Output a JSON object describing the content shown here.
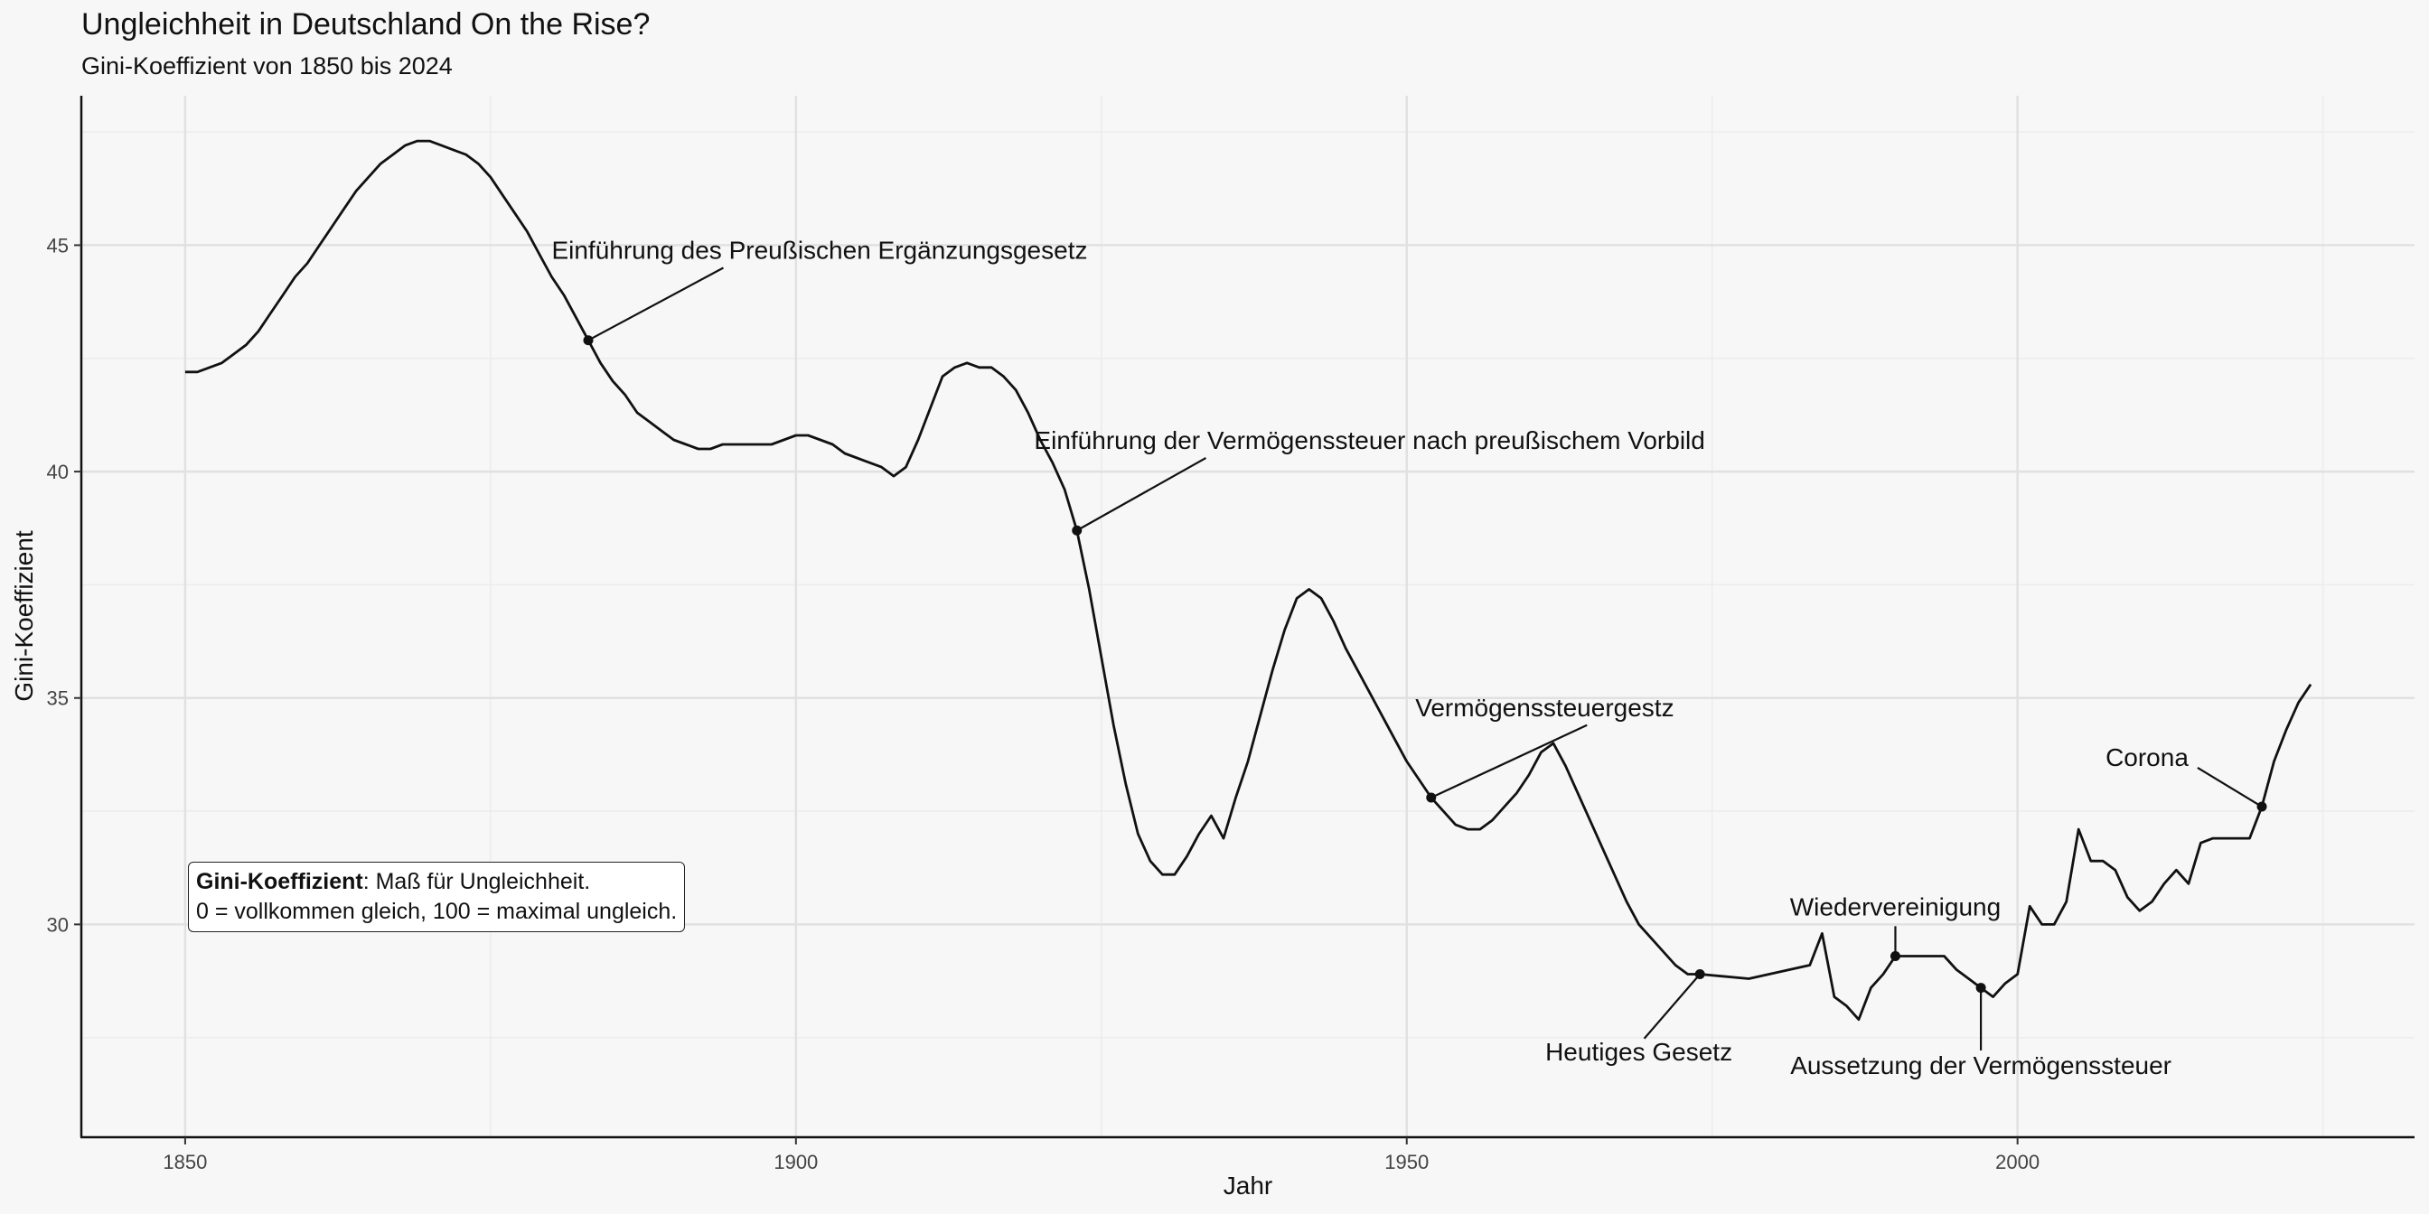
{
  "title": "Ungleichheit in Deutschland On the Rise?",
  "subtitle": "Gini-Koeffizient von 1850 bis 2024",
  "info_box": {
    "bold": "Gini-Koeffizient",
    "line1_rest": ": Maß für Ungleichheit.",
    "line2": "0 = vollkommen gleich, 100 = maximal ungleich."
  },
  "chart_data": {
    "type": "line",
    "title": "Ungleichheit in Deutschland On the Rise?",
    "subtitle": "Gini-Koeffizient von 1850 bis 2024",
    "xlabel": "Jahr",
    "ylabel": "Gini-Koeffizient",
    "xlim": [
      1841.5,
      2032.5
    ],
    "ylim": [
      25.3,
      48.3
    ],
    "x_ticks": [
      1850,
      1900,
      1950,
      2000
    ],
    "y_ticks": [
      30,
      35,
      40,
      45
    ],
    "grid": true,
    "series": [
      {
        "x": [
          1850,
          1851,
          1853,
          1855,
          1856,
          1857,
          1858,
          1859,
          1860,
          1861,
          1862,
          1863,
          1864,
          1866,
          1867,
          1868,
          1869,
          1870,
          1871,
          1872,
          1873,
          1874,
          1875,
          1876,
          1877,
          1878,
          1879,
          1880,
          1881,
          1882,
          1883,
          1884,
          1885,
          1886,
          1887,
          1888,
          1889,
          1890,
          1891,
          1892,
          1893,
          1894,
          1895,
          1896,
          1897,
          1898,
          1899,
          1900,
          1901,
          1902,
          1903,
          1904,
          1905,
          1906,
          1907,
          1908,
          1909,
          1910,
          1911,
          1912,
          1913,
          1914,
          1915,
          1916,
          1917,
          1918,
          1919,
          1920,
          1921,
          1922,
          1923,
          1924,
          1925,
          1926,
          1927,
          1928,
          1929,
          1930,
          1931,
          1932,
          1933,
          1934,
          1935,
          1936,
          1937,
          1938,
          1939,
          1940,
          1941,
          1942,
          1943,
          1944,
          1945,
          1946,
          1947,
          1948,
          1949,
          1950,
          1951,
          1952,
          1953,
          1954,
          1955,
          1956,
          1957,
          1958,
          1959,
          1960,
          1961,
          1962,
          1963,
          1964,
          1965,
          1966,
          1967,
          1968,
          1969,
          1970,
          1971,
          1972,
          1973,
          1974,
          1978,
          1983,
          1984,
          1985,
          1986,
          1987,
          1988,
          1989,
          1990,
          1991,
          1992,
          1993,
          1994,
          1995,
          1996,
          1997,
          1998,
          1999,
          2000,
          2001,
          2002,
          2003,
          2004,
          2005,
          2006,
          2007,
          2008,
          2009,
          2010,
          2011,
          2012,
          2013,
          2014,
          2015,
          2016,
          2017,
          2018,
          2019,
          2020,
          2021,
          2022,
          2023,
          2024
        ],
        "y": [
          42.2,
          42.2,
          42.4,
          42.8,
          43.1,
          43.5,
          43.9,
          44.3,
          44.6,
          45.0,
          45.4,
          45.8,
          46.2,
          46.8,
          47.0,
          47.2,
          47.3,
          47.3,
          47.2,
          47.1,
          47.0,
          46.8,
          46.5,
          46.1,
          45.7,
          45.3,
          44.8,
          44.3,
          43.9,
          43.4,
          42.9,
          42.4,
          42.0,
          41.7,
          41.3,
          41.1,
          40.9,
          40.7,
          40.6,
          40.5,
          40.5,
          40.6,
          40.6,
          40.6,
          40.6,
          40.6,
          40.7,
          40.8,
          40.8,
          40.7,
          40.6,
          40.4,
          40.3,
          40.2,
          40.1,
          39.9,
          40.1,
          40.7,
          41.4,
          42.1,
          42.3,
          42.4,
          42.3,
          42.3,
          42.1,
          41.8,
          41.3,
          40.7,
          40.2,
          39.6,
          38.7,
          37.4,
          35.9,
          34.4,
          33.1,
          32.0,
          31.4,
          31.1,
          31.1,
          31.5,
          32.0,
          32.4,
          31.9,
          32.8,
          33.6,
          34.6,
          35.6,
          36.5,
          37.2,
          37.4,
          37.2,
          36.7,
          36.1,
          35.6,
          35.1,
          34.6,
          34.1,
          33.6,
          33.2,
          32.8,
          32.5,
          32.2,
          32.1,
          32.1,
          32.3,
          32.6,
          32.9,
          33.3,
          33.8,
          34.0,
          33.5,
          32.9,
          32.3,
          31.7,
          31.1,
          30.5,
          30.0,
          29.7,
          29.4,
          29.1,
          28.9,
          28.9,
          28.8,
          29.1,
          29.8,
          28.4,
          28.2,
          27.9,
          28.6,
          28.9,
          29.3,
          29.3,
          29.3,
          29.3,
          29.3,
          29.0,
          28.8,
          28.6,
          28.4,
          28.7,
          28.9,
          30.4,
          30.0,
          30.0,
          30.5,
          32.1,
          31.4,
          31.4,
          31.2,
          30.6,
          30.3,
          30.5,
          30.9,
          31.2,
          30.9,
          31.8,
          31.9,
          31.9,
          31.9,
          31.9,
          32.6,
          33.6,
          34.3,
          34.9,
          35.3
        ]
      }
    ],
    "annotations": [
      {
        "label": "Einführung des Preußischen Ergänzungsgesetz",
        "x": 1883,
        "y": 42.9,
        "label_x": 1880,
        "label_y": 44.7,
        "anchor": "start"
      },
      {
        "label": "Einführung der Vermögenssteuer nach preußischem Vorbild",
        "x": 1923,
        "y": 38.7,
        "label_x": 1919.5,
        "label_y": 40.5,
        "anchor": "start"
      },
      {
        "label": "Vermögenssteuergestz",
        "x": 1952,
        "y": 32.8,
        "label_x": 1950.7,
        "label_y": 34.6,
        "anchor": "start"
      },
      {
        "label": "Heutiges Gesetz",
        "x": 1974,
        "y": 28.9,
        "label_x": 1969,
        "label_y": 27.0,
        "anchor": "middle"
      },
      {
        "label": "Wiedervereinigung",
        "x": 1990,
        "y": 29.3,
        "label_x": 1990,
        "label_y": 30.2,
        "anchor": "middle"
      },
      {
        "label": "Aussetzung der Vermögenssteuer",
        "x": 1997,
        "y": 28.6,
        "label_x": 1997,
        "label_y": 26.7,
        "anchor": "middle"
      },
      {
        "label": "Corona",
        "x": 2020,
        "y": 32.6,
        "label_x": 2014,
        "label_y": 33.5,
        "anchor": "end"
      }
    ]
  }
}
